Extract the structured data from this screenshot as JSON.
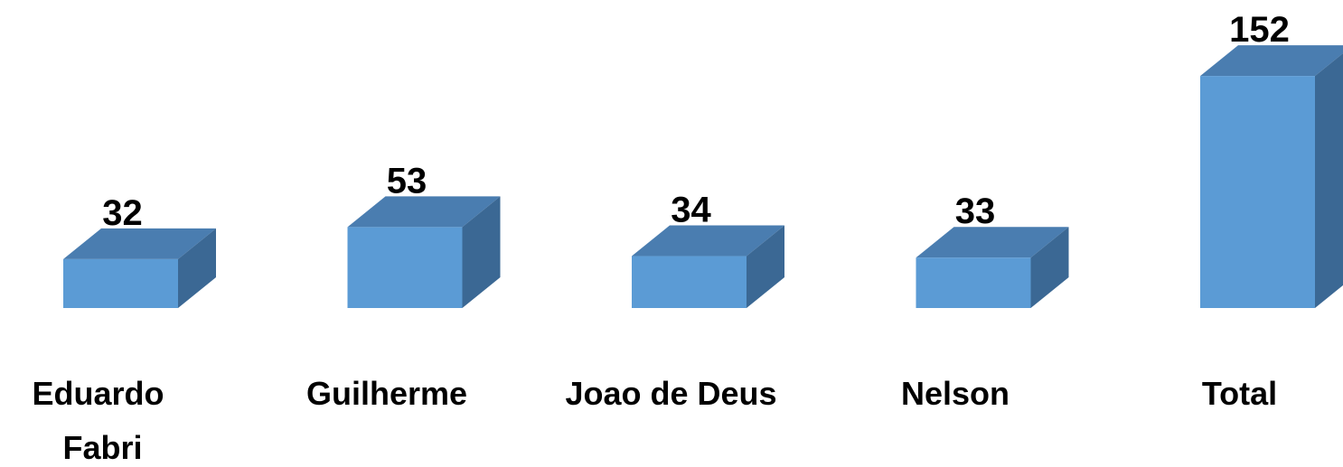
{
  "chart_data": {
    "type": "bar3d",
    "categories": [
      "Eduardo Fabri",
      "Guilherme",
      "Joao de Deus",
      "Nelson",
      "Total"
    ],
    "values": [
      32,
      53,
      34,
      33,
      152
    ],
    "color": "#5b9bd5",
    "top_color": "#4a7db0",
    "side_color": "#3b6894"
  }
}
